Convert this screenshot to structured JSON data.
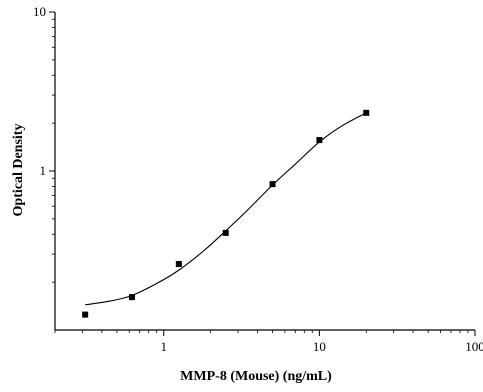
{
  "chart_data": {
    "type": "scatter",
    "title": "",
    "xlabel": "MMP-8 (Mouse) (ng/mL)",
    "ylabel": "Optical Density",
    "x_scale": "log",
    "y_scale": "log",
    "xlim": [
      0.2,
      100
    ],
    "ylim": [
      0.1,
      10
    ],
    "x_ticks": [
      {
        "value": 1,
        "label": "1"
      },
      {
        "value": 10,
        "label": "10"
      },
      {
        "value": 100,
        "label": "100"
      }
    ],
    "y_ticks": [
      {
        "value": 1,
        "label": "1"
      },
      {
        "value": 10,
        "label": "10"
      }
    ],
    "grid": false,
    "series": [
      {
        "marker": "square",
        "color": "#000000",
        "points": [
          {
            "x": 0.3125,
            "y": 0.125
          },
          {
            "x": 0.625,
            "y": 0.161
          },
          {
            "x": 1.25,
            "y": 0.26
          },
          {
            "x": 2.5,
            "y": 0.408
          },
          {
            "x": 5,
            "y": 0.827
          },
          {
            "x": 10,
            "y": 1.565
          },
          {
            "x": 20,
            "y": 2.322
          }
        ]
      }
    ],
    "fit_curve": {
      "color": "#000000",
      "points": [
        {
          "x": 0.3125,
          "y": 0.144
        },
        {
          "x": 0.45,
          "y": 0.152
        },
        {
          "x": 0.625,
          "y": 0.165
        },
        {
          "x": 0.9,
          "y": 0.196
        },
        {
          "x": 1.25,
          "y": 0.238
        },
        {
          "x": 1.8,
          "y": 0.314
        },
        {
          "x": 2.5,
          "y": 0.42
        },
        {
          "x": 3.5,
          "y": 0.575
        },
        {
          "x": 5,
          "y": 0.817
        },
        {
          "x": 7,
          "y": 1.104
        },
        {
          "x": 10,
          "y": 1.524
        },
        {
          "x": 14,
          "y": 1.925
        },
        {
          "x": 20,
          "y": 2.322
        }
      ]
    }
  }
}
